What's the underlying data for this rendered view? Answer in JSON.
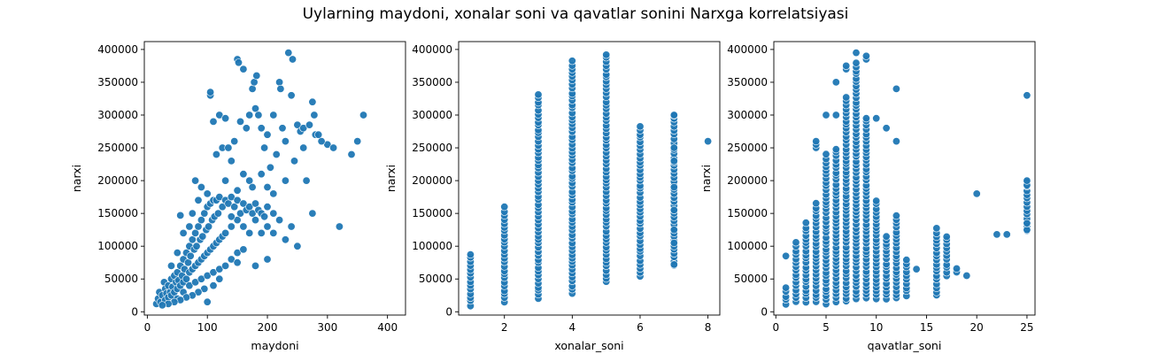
{
  "figure_title": "Uylarning maydoni, xonalar soni va qavatlar sonini Narxga korrelatsiyasi",
  "point_color": "#1f77b4",
  "chart_data": [
    {
      "type": "scatter",
      "xlabel": "maydoni",
      "ylabel": "narxi",
      "xlim": [
        -5,
        430
      ],
      "ylim": [
        -5000,
        412000
      ],
      "xticks": [
        0,
        100,
        200,
        300,
        400
      ],
      "yticks": [
        0,
        50000,
        100000,
        150000,
        200000,
        250000,
        300000,
        350000,
        400000
      ],
      "points": [
        [
          15,
          12000
        ],
        [
          18,
          20000
        ],
        [
          20,
          30000
        ],
        [
          22,
          15000
        ],
        [
          25,
          25000
        ],
        [
          28,
          45000
        ],
        [
          30,
          18000
        ],
        [
          30,
          35000
        ],
        [
          32,
          28000
        ],
        [
          35,
          40000
        ],
        [
          35,
          22000
        ],
        [
          38,
          30000
        ],
        [
          40,
          50000
        ],
        [
          40,
          25000
        ],
        [
          42,
          38000
        ],
        [
          45,
          55000
        ],
        [
          45,
          30000
        ],
        [
          48,
          45000
        ],
        [
          50,
          60000
        ],
        [
          50,
          35000
        ],
        [
          50,
          20000
        ],
        [
          52,
          48000
        ],
        [
          55,
          70000
        ],
        [
          55,
          40000
        ],
        [
          58,
          55000
        ],
        [
          60,
          80000
        ],
        [
          60,
          45000
        ],
        [
          60,
          30000
        ],
        [
          62,
          65000
        ],
        [
          65,
          90000
        ],
        [
          65,
          50000
        ],
        [
          68,
          75000
        ],
        [
          70,
          100000
        ],
        [
          70,
          60000
        ],
        [
          70,
          40000
        ],
        [
          72,
          85000
        ],
        [
          75,
          110000
        ],
        [
          75,
          65000
        ],
        [
          78,
          95000
        ],
        [
          80,
          120000
        ],
        [
          80,
          70000
        ],
        [
          80,
          45000
        ],
        [
          82,
          100000
        ],
        [
          85,
          130000
        ],
        [
          85,
          75000
        ],
        [
          88,
          110000
        ],
        [
          90,
          140000
        ],
        [
          90,
          80000
        ],
        [
          90,
          50000
        ],
        [
          92,
          115000
        ],
        [
          95,
          150000
        ],
        [
          95,
          85000
        ],
        [
          98,
          125000
        ],
        [
          100,
          160000
        ],
        [
          100,
          90000
        ],
        [
          100,
          55000
        ],
        [
          100,
          15000
        ],
        [
          102,
          130000
        ],
        [
          105,
          165000
        ],
        [
          105,
          95000
        ],
        [
          108,
          140000
        ],
        [
          110,
          170000
        ],
        [
          110,
          100000
        ],
        [
          110,
          60000
        ],
        [
          112,
          145000
        ],
        [
          115,
          170000
        ],
        [
          115,
          105000
        ],
        [
          118,
          150000
        ],
        [
          120,
          175000
        ],
        [
          120,
          110000
        ],
        [
          120,
          65000
        ],
        [
          125,
          160000
        ],
        [
          125,
          115000
        ],
        [
          130,
          170000
        ],
        [
          130,
          120000
        ],
        [
          130,
          70000
        ],
        [
          135,
          165000
        ],
        [
          140,
          175000
        ],
        [
          140,
          130000
        ],
        [
          140,
          80000
        ],
        [
          145,
          160000
        ],
        [
          150,
          170000
        ],
        [
          150,
          140000
        ],
        [
          150,
          90000
        ],
        [
          155,
          150000
        ],
        [
          160,
          165000
        ],
        [
          160,
          130000
        ],
        [
          165,
          155000
        ],
        [
          170,
          160000
        ],
        [
          170,
          120000
        ],
        [
          175,
          150000
        ],
        [
          180,
          165000
        ],
        [
          180,
          140000
        ],
        [
          185,
          155000
        ],
        [
          190,
          150000
        ],
        [
          190,
          120000
        ],
        [
          195,
          145000
        ],
        [
          200,
          160000
        ],
        [
          200,
          130000
        ],
        [
          210,
          150000
        ],
        [
          210,
          120000
        ],
        [
          220,
          140000
        ],
        [
          230,
          110000
        ],
        [
          240,
          130000
        ],
        [
          250,
          100000
        ],
        [
          80,
          200000
        ],
        [
          90,
          190000
        ],
        [
          100,
          180000
        ],
        [
          105,
          330000
        ],
        [
          105,
          335000
        ],
        [
          110,
          290000
        ],
        [
          115,
          240000
        ],
        [
          120,
          300000
        ],
        [
          125,
          250000
        ],
        [
          130,
          295000
        ],
        [
          135,
          250000
        ],
        [
          140,
          230000
        ],
        [
          145,
          260000
        ],
        [
          150,
          385000
        ],
        [
          152,
          380000
        ],
        [
          155,
          290000
        ],
        [
          160,
          370000
        ],
        [
          165,
          280000
        ],
        [
          170,
          300000
        ],
        [
          175,
          340000
        ],
        [
          178,
          350000
        ],
        [
          180,
          310000
        ],
        [
          182,
          360000
        ],
        [
          185,
          300000
        ],
        [
          190,
          280000
        ],
        [
          195,
          250000
        ],
        [
          200,
          270000
        ],
        [
          205,
          220000
        ],
        [
          210,
          300000
        ],
        [
          215,
          240000
        ],
        [
          220,
          350000
        ],
        [
          222,
          340000
        ],
        [
          225,
          280000
        ],
        [
          230,
          260000
        ],
        [
          235,
          395000
        ],
        [
          240,
          330000
        ],
        [
          242,
          385000
        ],
        [
          245,
          230000
        ],
        [
          250,
          285000
        ],
        [
          255,
          275000
        ],
        [
          260,
          280000
        ],
        [
          265,
          200000
        ],
        [
          270,
          285000
        ],
        [
          275,
          320000
        ],
        [
          278,
          300000
        ],
        [
          280,
          270000
        ],
        [
          275,
          150000
        ],
        [
          300,
          255000
        ],
        [
          310,
          250000
        ],
        [
          320,
          130000
        ],
        [
          340,
          240000
        ],
        [
          350,
          260000
        ],
        [
          360,
          300000
        ],
        [
          290,
          260000
        ],
        [
          285,
          270000
        ],
        [
          260,
          250000
        ],
        [
          230,
          200000
        ],
        [
          210,
          180000
        ],
        [
          190,
          210000
        ],
        [
          170,
          200000
        ],
        [
          150,
          185000
        ],
        [
          130,
          200000
        ],
        [
          160,
          210000
        ],
        [
          175,
          190000
        ],
        [
          200,
          190000
        ],
        [
          140,
          145000
        ],
        [
          160,
          95000
        ],
        [
          180,
          70000
        ],
        [
          200,
          80000
        ],
        [
          150,
          75000
        ],
        [
          120,
          50000
        ],
        [
          110,
          40000
        ],
        [
          95,
          35000
        ],
        [
          85,
          30000
        ],
        [
          75,
          25000
        ],
        [
          65,
          22000
        ],
        [
          55,
          18000
        ],
        [
          45,
          15000
        ],
        [
          35,
          12000
        ],
        [
          25,
          10000
        ],
        [
          60,
          120000
        ],
        [
          70,
          130000
        ],
        [
          75,
          150000
        ],
        [
          85,
          170000
        ],
        [
          50,
          90000
        ],
        [
          40,
          70000
        ],
        [
          55,
          147000
        ]
      ]
    },
    {
      "type": "scatter",
      "xlabel": "xonalar_soni",
      "ylabel": "narxi",
      "xlim": [
        0.65,
        8.35
      ],
      "ylim": [
        -5000,
        412000
      ],
      "xticks": [
        2,
        4,
        6,
        8
      ],
      "yticks": [
        0,
        50000,
        100000,
        150000,
        200000,
        250000,
        300000,
        350000,
        400000
      ],
      "columns": [
        {
          "x": 1,
          "min": 10000,
          "max": 90000,
          "extra": []
        },
        {
          "x": 2,
          "min": 15000,
          "max": 160000,
          "extra": []
        },
        {
          "x": 3,
          "min": 20000,
          "max": 335000,
          "extra": []
        },
        {
          "x": 4,
          "min": 28000,
          "max": 385000,
          "extra": []
        },
        {
          "x": 5,
          "min": 45000,
          "max": 395000,
          "extra": []
        },
        {
          "x": 6,
          "min": 55000,
          "max": 285000,
          "extra": []
        },
        {
          "x": 7,
          "min": 72000,
          "max": 300000,
          "extra": [
            72000,
            100000,
            105000,
            125000,
            155000,
            190000,
            230000,
            250000,
            300000
          ]
        },
        {
          "x": 8,
          "min": 260000,
          "max": 260000,
          "extra": [
            260000
          ]
        }
      ]
    },
    {
      "type": "scatter",
      "xlabel": "qavatlar_soni",
      "ylabel": "narxi",
      "xlim": [
        -0.2,
        25.8
      ],
      "ylim": [
        -5000,
        412000
      ],
      "xticks": [
        0,
        5,
        10,
        15,
        20,
        25
      ],
      "yticks": [
        0,
        50000,
        100000,
        150000,
        200000,
        250000,
        300000,
        350000,
        400000
      ],
      "columns": [
        {
          "x": 1,
          "min": 12000,
          "max": 40000,
          "extra": [
            85000
          ]
        },
        {
          "x": 2,
          "min": 15000,
          "max": 110000,
          "extra": []
        },
        {
          "x": 3,
          "min": 15000,
          "max": 140000,
          "extra": []
        },
        {
          "x": 4,
          "min": 15000,
          "max": 170000,
          "extra": [
            250000,
            255000,
            260000
          ]
        },
        {
          "x": 5,
          "min": 12000,
          "max": 240000,
          "extra": [
            300000
          ]
        },
        {
          "x": 6,
          "min": 15000,
          "max": 250000,
          "extra": [
            300000,
            350000
          ]
        },
        {
          "x": 7,
          "min": 15000,
          "max": 330000,
          "extra": [
            370000,
            375000
          ]
        },
        {
          "x": 8,
          "min": 20000,
          "max": 385000,
          "extra": [
            395000
          ]
        },
        {
          "x": 9,
          "min": 20000,
          "max": 300000,
          "extra": [
            385000,
            390000
          ]
        },
        {
          "x": 10,
          "min": 20000,
          "max": 175000,
          "extra": [
            295000
          ]
        },
        {
          "x": 11,
          "min": 20000,
          "max": 120000,
          "extra": [
            280000
          ]
        },
        {
          "x": 12,
          "min": 20000,
          "max": 150000,
          "extra": [
            260000,
            340000
          ]
        },
        {
          "x": 13,
          "min": 25000,
          "max": 80000,
          "extra": []
        },
        {
          "x": 14,
          "min": 65000,
          "max": 65000,
          "extra": [
            65000
          ]
        },
        {
          "x": 16,
          "min": 25000,
          "max": 130000,
          "extra": []
        },
        {
          "x": 17,
          "min": 55000,
          "max": 120000,
          "extra": []
        },
        {
          "x": 18,
          "min": 60000,
          "max": 70000,
          "extra": []
        },
        {
          "x": 19,
          "min": 55000,
          "max": 55000,
          "extra": [
            55000
          ]
        },
        {
          "x": 20,
          "min": 180000,
          "max": 180000,
          "extra": [
            180000
          ]
        },
        {
          "x": 22,
          "min": 118000,
          "max": 118000,
          "extra": [
            118000
          ]
        },
        {
          "x": 23,
          "min": 118000,
          "max": 118000,
          "extra": [
            118000
          ]
        },
        {
          "x": 25,
          "min": 125000,
          "max": 200000,
          "extra": [
            125000,
            135000,
            193000,
            200000,
            330000
          ]
        }
      ]
    }
  ]
}
